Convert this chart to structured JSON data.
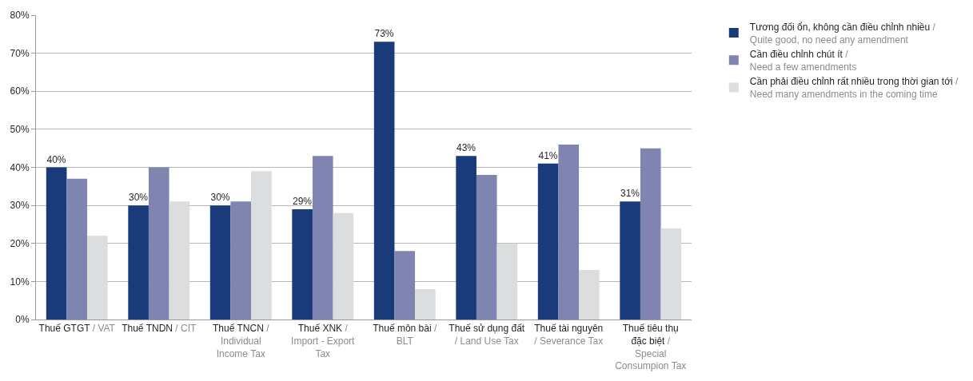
{
  "chart_data": {
    "type": "bar",
    "categories": [
      "Thuế GTGT / VAT",
      "Thuế TNDN / CIT",
      "Thuế TNCN / Individual Income Tax",
      "Thuế XNK / Import - Export Tax",
      "Thuế môn bài / BLT",
      "Thuế sử dụng đất / Land Use Tax",
      "Thuế tài nguyên / Severance Tax",
      "Thuế tiêu thụ đặc biệt / Special Consumpion Tax"
    ],
    "series": [
      {
        "name": "Tương đối ổn, không cần điều chỉnh nhiều / Quite good, no need any amendment",
        "color": "#1a3b7a",
        "values": [
          40,
          30,
          30,
          29,
          73,
          43,
          41,
          31
        ],
        "value_labels": [
          "40%",
          "30%",
          "30%",
          "29%",
          "73%",
          "43%",
          "41%",
          "31%"
        ]
      },
      {
        "name": "Cần điều chỉnh chút ít / Need a few amendments",
        "color": "#7f84b0",
        "values": [
          37,
          40,
          31,
          43,
          18,
          38,
          46,
          45
        ]
      },
      {
        "name": "Cần phải điều chỉnh rất nhiều trong thời gian tới / Need many amendments in the coming time",
        "color": "#dcdddf",
        "values": [
          22,
          31,
          39,
          28,
          8,
          20,
          13,
          24
        ]
      }
    ],
    "ylim": [
      0,
      80
    ],
    "yticks": [
      {
        "value": 0,
        "label": "0%"
      },
      {
        "value": 10,
        "label": "10%"
      },
      {
        "value": 20,
        "label": "20%"
      },
      {
        "value": 30,
        "label": "30%"
      },
      {
        "value": 40,
        "label": "40%"
      },
      {
        "value": 50,
        "label": "50%"
      },
      {
        "value": 60,
        "label": "60%"
      },
      {
        "value": 70,
        "label": "70%"
      },
      {
        "value": 80,
        "label": "80%"
      }
    ],
    "grid": "y",
    "legend": "top right"
  }
}
